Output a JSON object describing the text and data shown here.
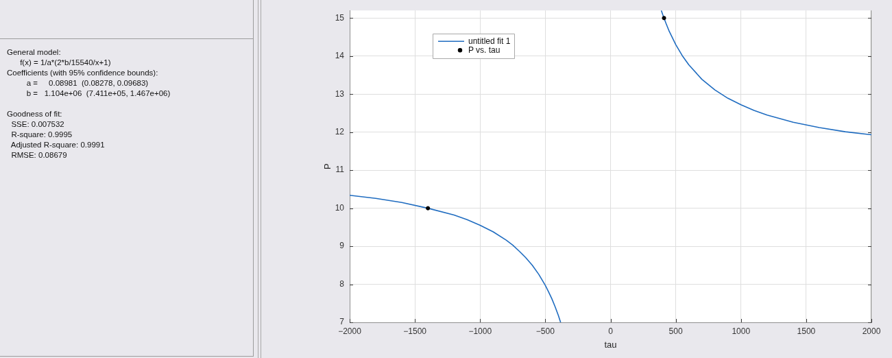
{
  "chart_data": {
    "type": "scatter",
    "xlabel": "tau",
    "ylabel": "P",
    "annotations": [
      "General model:\n      f(x) = 1/a*(2*b/15540/x+1)\nCoefficients (with 95% confidence bounds):\n         a =     0.08981  (0.08278, 0.09683)\n         b =   1.104e+06  (7.411e+05, 1.467e+06)",
      "Goodness of fit:\n  SSE: 0.007532\n  R-square: 0.9995\n  Adjusted R-square: 0.9991\n  RMSE: 0.08679"
    ],
    "series": [
      {
        "name": "untitled fit 1",
        "type": "line",
        "color": "#1f6cc0",
        "marker": "none",
        "x": [
          -2000,
          -1800,
          -1600,
          -1400,
          -1200,
          -1100,
          -1000,
          -900,
          -800,
          -750,
          -700,
          -650,
          -600,
          -550,
          -500,
          -475,
          -450,
          -425,
          -400,
          -383,
          0,
          390,
          400,
          425,
          450,
          500,
          550,
          600,
          700,
          800,
          900,
          1000,
          1100,
          1200,
          1400,
          1600,
          1800,
          2000
        ],
        "values": [
          10.34,
          10.26,
          10.15,
          10.0,
          9.82,
          9.7,
          9.55,
          9.38,
          9.16,
          9.03,
          8.87,
          8.7,
          8.5,
          8.26,
          7.97,
          7.8,
          7.62,
          7.41,
          7.18,
          7.0,
          null,
          15.19,
          15.09,
          14.86,
          14.65,
          14.3,
          14.01,
          13.77,
          13.39,
          13.11,
          12.89,
          12.72,
          12.57,
          12.45,
          12.26,
          12.12,
          12.01,
          11.93
        ]
      },
      {
        "name": "P vs. tau",
        "type": "scatter",
        "color": "#000000",
        "marker": "circle",
        "x": [
          -1400,
          410
        ],
        "values": [
          10,
          15
        ]
      }
    ],
    "xlim": [
      -2000,
      2000
    ],
    "xticks": [
      -2000,
      -1500,
      -1000,
      -500,
      0,
      500,
      1000,
      1500,
      2000
    ],
    "ylim": [
      7,
      15.2
    ],
    "yticks": [
      7,
      8,
      9,
      10,
      11,
      12,
      13,
      14,
      15
    ],
    "grid": true,
    "legend": "top left"
  }
}
